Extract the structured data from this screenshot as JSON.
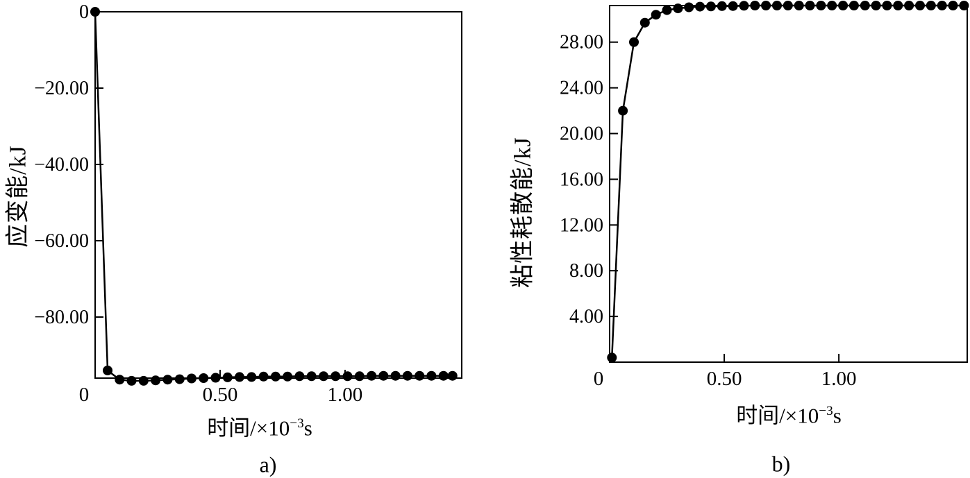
{
  "page": {
    "background": "#ffffff",
    "ink": "#000000"
  },
  "chart_data": [
    {
      "id": "a",
      "type": "line",
      "caption": "a)",
      "xlabel": "时间/×10⁻³s",
      "xlabel_parts": {
        "prefix": "时间/×10",
        "sup": "−3",
        "suffix": "s"
      },
      "ylabel": "应变能/kJ",
      "xlim": [
        0,
        1.467
      ],
      "ylim": [
        -96,
        0
      ],
      "xticks": {
        "values": [
          0,
          0.5,
          1.0
        ],
        "labels": [
          "0",
          "0.50",
          "1.00"
        ]
      },
      "yticks": {
        "values": [
          0,
          -20,
          -40,
          -60,
          -80
        ],
        "labels": [
          "0",
          "−20.00",
          "−40.00",
          "−60.00",
          "−80.00"
        ]
      },
      "grid": false,
      "frame": true,
      "legend": null,
      "marker": {
        "shape": "filled-circle",
        "radius": 7,
        "color": "#000000"
      },
      "line": {
        "color": "#000000",
        "width": 2.5
      },
      "series": [
        {
          "name": "应变能",
          "points": [
            [
              0.0,
              0.0
            ],
            [
              0.05,
              -94.0
            ],
            [
              0.098,
              -96.4
            ],
            [
              0.146,
              -96.7
            ],
            [
              0.194,
              -96.7
            ],
            [
              0.242,
              -96.6
            ],
            [
              0.29,
              -96.4
            ],
            [
              0.338,
              -96.3
            ],
            [
              0.386,
              -96.1
            ],
            [
              0.434,
              -96.0
            ],
            [
              0.482,
              -95.9
            ],
            [
              0.53,
              -95.8
            ],
            [
              0.578,
              -95.7
            ],
            [
              0.626,
              -95.7
            ],
            [
              0.674,
              -95.6
            ],
            [
              0.722,
              -95.6
            ],
            [
              0.77,
              -95.6
            ],
            [
              0.818,
              -95.5
            ],
            [
              0.866,
              -95.5
            ],
            [
              0.914,
              -95.5
            ],
            [
              0.962,
              -95.5
            ],
            [
              1.01,
              -95.5
            ],
            [
              1.058,
              -95.5
            ],
            [
              1.106,
              -95.4
            ],
            [
              1.154,
              -95.4
            ],
            [
              1.202,
              -95.4
            ],
            [
              1.25,
              -95.4
            ],
            [
              1.298,
              -95.4
            ],
            [
              1.346,
              -95.4
            ],
            [
              1.394,
              -95.4
            ],
            [
              1.43,
              -95.4
            ]
          ]
        }
      ]
    },
    {
      "id": "b",
      "type": "line",
      "caption": "b)",
      "xlabel": "时间/×10⁻³s",
      "xlabel_parts": {
        "prefix": "时间/×10",
        "sup": "−3",
        "suffix": "s"
      },
      "ylabel": "粘性耗散能/kJ",
      "xlim": [
        0,
        1.56
      ],
      "ylim": [
        0,
        31.2
      ],
      "xticks": {
        "values": [
          0,
          0.5,
          1.0
        ],
        "labels": [
          "0",
          "0.50",
          "1.00"
        ]
      },
      "yticks": {
        "values": [
          4,
          8,
          12,
          16,
          20,
          24,
          28
        ],
        "labels": [
          "4.00",
          "8.00",
          "12.00",
          "16.00",
          "20.00",
          "24.00",
          "28.00"
        ]
      },
      "grid": false,
      "frame": true,
      "legend": null,
      "marker": {
        "shape": "filled-circle",
        "radius": 7,
        "color": "#000000"
      },
      "line": {
        "color": "#000000",
        "width": 2.5
      },
      "series": [
        {
          "name": "粘性耗散能",
          "points": [
            [
              0.01,
              0.4
            ],
            [
              0.058,
              22.0
            ],
            [
              0.106,
              28.0
            ],
            [
              0.154,
              29.7
            ],
            [
              0.202,
              30.4
            ],
            [
              0.25,
              30.8
            ],
            [
              0.298,
              30.95
            ],
            [
              0.346,
              31.05
            ],
            [
              0.394,
              31.1
            ],
            [
              0.442,
              31.12
            ],
            [
              0.49,
              31.15
            ],
            [
              0.538,
              31.16
            ],
            [
              0.586,
              31.18
            ],
            [
              0.634,
              31.2
            ],
            [
              0.682,
              31.2
            ],
            [
              0.73,
              31.2
            ],
            [
              0.778,
              31.2
            ],
            [
              0.826,
              31.2
            ],
            [
              0.874,
              31.2
            ],
            [
              0.922,
              31.2
            ],
            [
              0.97,
              31.2
            ],
            [
              1.018,
              31.2
            ],
            [
              1.066,
              31.2
            ],
            [
              1.114,
              31.2
            ],
            [
              1.162,
              31.2
            ],
            [
              1.21,
              31.2
            ],
            [
              1.258,
              31.2
            ],
            [
              1.306,
              31.2
            ],
            [
              1.354,
              31.2
            ],
            [
              1.402,
              31.2
            ],
            [
              1.45,
              31.2
            ],
            [
              1.498,
              31.2
            ],
            [
              1.546,
              31.2
            ]
          ]
        }
      ]
    }
  ]
}
